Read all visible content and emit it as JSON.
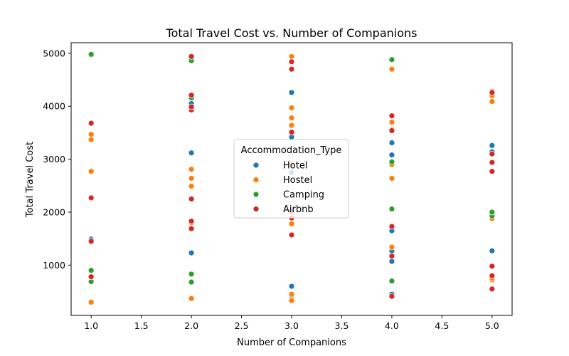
{
  "chart_data": {
    "type": "scatter",
    "title": "Total Travel Cost vs. Number of Companions",
    "xlabel": "Number of Companions",
    "ylabel": "Total Travel Cost",
    "xlim": [
      0.8,
      5.2
    ],
    "ylim": [
      50,
      5200
    ],
    "x_ticks": [
      "1.0",
      "1.5",
      "2.0",
      "2.5",
      "3.0",
      "3.5",
      "4.0",
      "4.5",
      "5.0"
    ],
    "y_ticks": [
      "1000",
      "2000",
      "3000",
      "4000",
      "5000"
    ],
    "grid": false,
    "legend": {
      "title": "Accommodation_Type",
      "placement": "center"
    },
    "series": [
      {
        "name": "Hotel",
        "color": "#1f77b4",
        "points": [
          [
            1,
            1500
          ],
          [
            1,
            1480
          ],
          [
            2,
            1230
          ],
          [
            2,
            3120
          ],
          [
            2,
            3960
          ],
          [
            2,
            4050
          ],
          [
            3,
            420
          ],
          [
            3,
            450
          ],
          [
            3,
            600
          ],
          [
            3,
            2750
          ],
          [
            3,
            3420
          ],
          [
            3,
            4260
          ],
          [
            4,
            450
          ],
          [
            4,
            1070
          ],
          [
            4,
            1270
          ],
          [
            4,
            1650
          ],
          [
            4,
            3080
          ],
          [
            4,
            3310
          ],
          [
            5,
            1270
          ],
          [
            5,
            3140
          ],
          [
            5,
            3260
          ]
        ]
      },
      {
        "name": "Hostel",
        "color": "#ff7f0e",
        "points": [
          [
            1,
            300
          ],
          [
            1,
            2770
          ],
          [
            1,
            3370
          ],
          [
            1,
            3470
          ],
          [
            2,
            370
          ],
          [
            2,
            1800
          ],
          [
            2,
            2490
          ],
          [
            2,
            2640
          ],
          [
            2,
            2810
          ],
          [
            3,
            330
          ],
          [
            3,
            450
          ],
          [
            3,
            1780
          ],
          [
            3,
            2900
          ],
          [
            3,
            3510
          ],
          [
            3,
            3640
          ],
          [
            3,
            3780
          ],
          [
            3,
            3970
          ],
          [
            3,
            4940
          ],
          [
            4,
            1340
          ],
          [
            4,
            2640
          ],
          [
            4,
            2900
          ],
          [
            4,
            3560
          ],
          [
            4,
            3700
          ],
          [
            4,
            4700
          ],
          [
            5,
            720
          ],
          [
            5,
            750
          ],
          [
            5,
            1880
          ],
          [
            5,
            4090
          ],
          [
            5,
            4200
          ],
          [
            5,
            4280
          ]
        ]
      },
      {
        "name": "Camping",
        "color": "#2ca02c",
        "points": [
          [
            1,
            690
          ],
          [
            1,
            900
          ],
          [
            1,
            4980
          ],
          [
            2,
            680
          ],
          [
            2,
            830
          ],
          [
            2,
            4160
          ],
          [
            2,
            4860
          ],
          [
            4,
            700
          ],
          [
            4,
            2060
          ],
          [
            4,
            2950
          ],
          [
            4,
            4880
          ],
          [
            5,
            1930
          ],
          [
            5,
            2000
          ]
        ]
      },
      {
        "name": "Airbnb",
        "color": "#d62728",
        "points": [
          [
            1,
            1450
          ],
          [
            1,
            780
          ],
          [
            1,
            2270
          ],
          [
            1,
            3680
          ],
          [
            2,
            1690
          ],
          [
            2,
            1830
          ],
          [
            2,
            2250
          ],
          [
            2,
            3930
          ],
          [
            2,
            3990
          ],
          [
            2,
            4210
          ],
          [
            2,
            4940
          ],
          [
            3,
            1570
          ],
          [
            3,
            1890
          ],
          [
            3,
            2010
          ],
          [
            3,
            3510
          ],
          [
            3,
            4700
          ],
          [
            3,
            4840
          ],
          [
            4,
            410
          ],
          [
            4,
            1170
          ],
          [
            4,
            1730
          ],
          [
            4,
            3540
          ],
          [
            4,
            3820
          ],
          [
            5,
            550
          ],
          [
            5,
            800
          ],
          [
            5,
            980
          ],
          [
            5,
            2770
          ],
          [
            5,
            2940
          ],
          [
            5,
            3100
          ],
          [
            5,
            4260
          ]
        ]
      }
    ]
  }
}
